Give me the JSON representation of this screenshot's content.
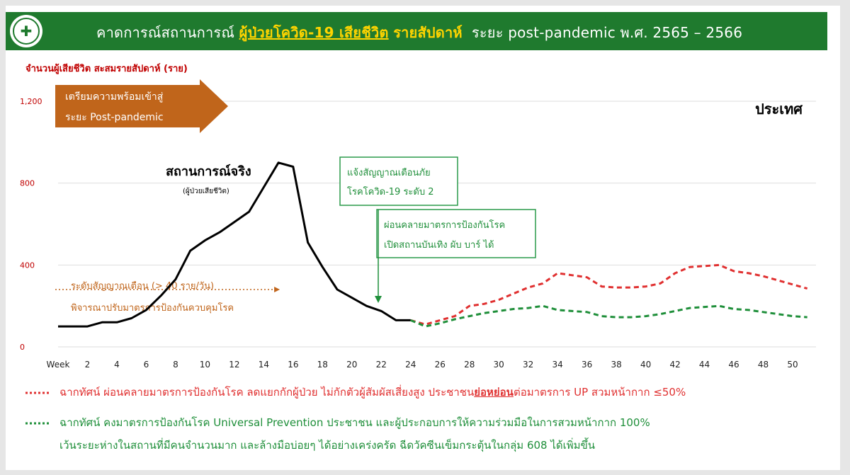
{
  "header": {
    "title_before": "คาดการณ์สถานการณ์",
    "title_highlight": "ผู้ป่วยโควิด-19 เสียชีวิต",
    "title_bold": "รายสัปดาห์",
    "title_after": "ระยะ post-pandemic พ.ศ. 2565 – 2566"
  },
  "y_axis_caption": "จำนวนผู้เสียชีวิต สะสมรายสัปดาห์ (ราย)",
  "region_label": "ประเทศ",
  "arrow_box": {
    "line1": "เตรียมความพร้อมเข้าสู่",
    "line2": "ระยะ Post-pandemic"
  },
  "actual_label": {
    "title": "สถานการณ์จริง",
    "subtitle": "(ผู้ป่วยเสียชีวิต)"
  },
  "alert_box": {
    "line1": "แจ้งสัญญาณเตือนภัย",
    "line2": "โรคโควิด-19 ระดับ 2"
  },
  "relax_box": {
    "line1": "ผ่อนคลายมาตรการป้องกันโรค",
    "line2": "เปิดสถานบันเทิง ผับ บาร์ ได้"
  },
  "threshold": {
    "line1": "ระดับสัญญาณเตือน   (> 40 ราย/วัน)",
    "line2": "พิจารณาปรับมาตรการป้องกันควบคุมโรค"
  },
  "legend": {
    "red_a": "ฉากทัศน์ ผ่อนคลายมาตรการป้องกันโรค ลดแยกกักผู้ป่วย ไม่กักตัวผู้สัมผัสเสี่ยงสูง ประชาชน",
    "red_u": "ย่อหย่อน",
    "red_b": "ต่อมาตรการ UP สวมหน้ากาก ≤50%",
    "green_1": "ฉากทัศน์ คงมาตรการป้องกันโรค Universal Prevention ประชาชน และผู้ประกอบการให้ความร่วมมือในการสวมหน้ากาก 100%",
    "green_2": "เว้นระยะห่างในสถานที่มีคนจำนวนมาก และล้างมือบ่อยๆ ได้อย่างเคร่งครัด ฉีดวัคซีนเข็มกระตุ้นในกลุ่ม 608 ได้เพิ่มขึ้น"
  },
  "colors": {
    "header_green": "#1f7a2e",
    "highlight_yellow": "#ffd400",
    "arrow_orange": "#c0651b",
    "actual": "#000000",
    "relax_scenario": "#e03030",
    "prevention_scenario": "#1f8f3a",
    "threshold_text": "#c0651b",
    "axis_text": "#c00000"
  },
  "chart_data": {
    "type": "line",
    "xlabel_first_tick": "Week",
    "x_ticks": [
      2,
      4,
      6,
      8,
      10,
      12,
      14,
      16,
      18,
      20,
      22,
      24,
      26,
      28,
      30,
      32,
      34,
      36,
      38,
      40,
      42,
      44,
      46,
      48,
      50
    ],
    "y_ticks": [
      "0",
      "400",
      "800",
      "1,200"
    ],
    "xlim": [
      0,
      51
    ],
    "ylim": [
      0,
      1200
    ],
    "grid": true,
    "threshold_week_range": [
      0,
      15
    ],
    "threshold_value": 280,
    "series": [
      {
        "style": "solid",
        "x": [
          0,
          2,
          3,
          4,
          5,
          6,
          7,
          8,
          9,
          10,
          11,
          12,
          13,
          14,
          15,
          16,
          17,
          18,
          19,
          20,
          21,
          22,
          23,
          24
        ],
        "y": [
          100,
          100,
          120,
          120,
          140,
          180,
          250,
          330,
          470,
          520,
          560,
          610,
          660,
          780,
          900,
          880,
          510,
          390,
          280,
          240,
          200,
          175,
          130,
          130
        ]
      },
      {
        "style": "dashed",
        "x": [
          24,
          25,
          26,
          27,
          28,
          29,
          30,
          31,
          32,
          33,
          34,
          35,
          36,
          37,
          38,
          39,
          40,
          41,
          42,
          43,
          44,
          45,
          46,
          47,
          48,
          49,
          50,
          51
        ],
        "y": [
          130,
          110,
          130,
          150,
          200,
          210,
          230,
          260,
          290,
          310,
          360,
          350,
          340,
          295,
          290,
          290,
          295,
          310,
          360,
          390,
          395,
          400,
          370,
          360,
          345,
          325,
          305,
          285
        ]
      },
      {
        "style": "dashed",
        "x": [
          24,
          25,
          26,
          27,
          28,
          29,
          30,
          31,
          32,
          33,
          34,
          35,
          36,
          37,
          38,
          39,
          40,
          41,
          42,
          43,
          44,
          45,
          46,
          47,
          48,
          49,
          50,
          51
        ],
        "y": [
          130,
          100,
          115,
          135,
          150,
          165,
          175,
          185,
          190,
          200,
          180,
          175,
          170,
          150,
          145,
          145,
          150,
          160,
          175,
          190,
          195,
          200,
          185,
          180,
          170,
          160,
          150,
          145
        ]
      }
    ]
  }
}
